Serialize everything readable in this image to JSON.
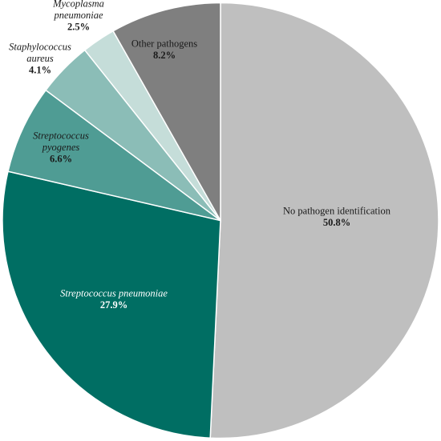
{
  "chart_data": {
    "type": "pie",
    "slices": [
      {
        "name_lines": [
          "No pathogen identification"
        ],
        "italic": false,
        "label": "50.8%",
        "value": 50.8,
        "color": "#bfbfbf",
        "dark": false
      },
      {
        "name_lines": [
          "Streptococcus pneumoniae"
        ],
        "italic": true,
        "label": "27.9%",
        "value": 27.9,
        "color": "#006e63",
        "dark": true
      },
      {
        "name_lines": [
          "Streptococcus",
          "pyogenes"
        ],
        "italic": true,
        "label": "6.6%",
        "value": 6.6,
        "color": "#4f9c94",
        "dark": false
      },
      {
        "name_lines": [
          "Staphylococcus",
          "aureus"
        ],
        "italic": true,
        "label": "4.1%",
        "value": 4.1,
        "color": "#8bbdb7",
        "dark": false
      },
      {
        "name_lines": [
          "Mycoplasma",
          "pneumoniae"
        ],
        "italic": true,
        "label": "2.5%",
        "value": 2.5,
        "color": "#c5ddd9",
        "dark": false
      },
      {
        "name_lines": [
          "Other pathogens"
        ],
        "italic": false,
        "label": "8.2%",
        "value": 8.2,
        "color": "#7f7f7f",
        "dark": false
      }
    ],
    "start": "top",
    "direction": "clockwise",
    "legend": "none"
  }
}
